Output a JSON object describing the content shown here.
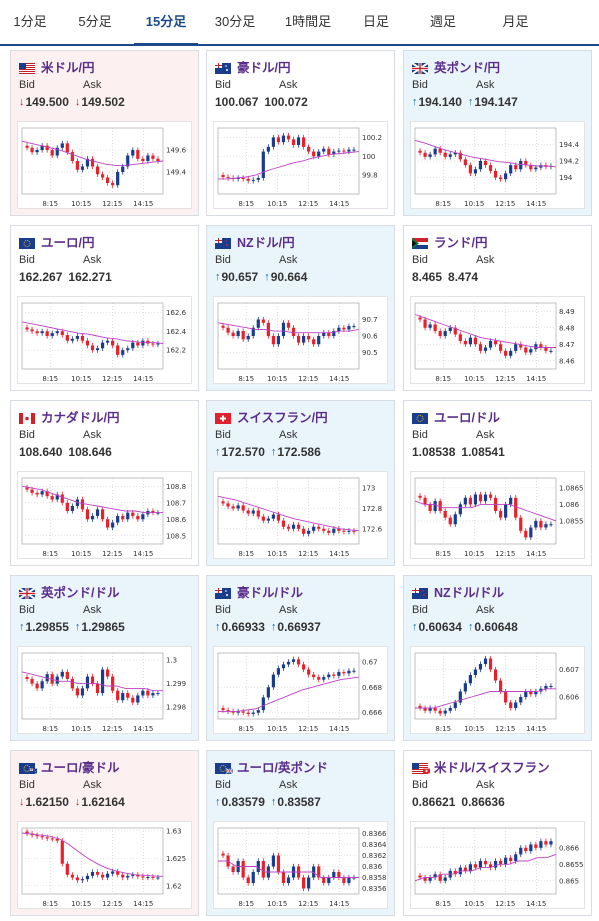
{
  "tabs": [
    "1分足",
    "5分足",
    "15分足",
    "30分足",
    "1時間足",
    "日足",
    "週足",
    "月足"
  ],
  "active_tab": 2,
  "labels": {
    "bid": "Bid",
    "ask": "Ask"
  },
  "colors": {
    "down_bg": "#fdf0f0",
    "up_bg": "#eaf4fb",
    "pair_name": "#5a2d8c",
    "bull": "#1a3c8c",
    "bear": "#e8202a",
    "ma": "#c040c8",
    "trend": "#35a5d8",
    "tab_accent": "#1a4a8a"
  },
  "x_ticks": [
    "8:15",
    "10:15",
    "12:15",
    "14:15"
  ],
  "pairs": [
    {
      "name": "米ドル/円",
      "flag": "us",
      "dir": "down",
      "bid": "149.500",
      "ask": "149.502",
      "ticks": [
        "149.6",
        "149.4"
      ],
      "chart_data": {
        "type": "candlestick",
        "ylim": [
          149.2,
          149.8
        ],
        "yticks": [
          149.6,
          149.4
        ],
        "close": [
          149.62,
          149.58,
          149.6,
          149.64,
          149.6,
          149.55,
          149.62,
          149.66,
          149.58,
          149.5,
          149.42,
          149.45,
          149.52,
          149.45,
          149.38,
          149.35,
          149.3,
          149.28,
          149.4,
          149.45,
          149.55,
          149.6,
          149.52,
          149.5,
          149.55,
          149.52,
          149.5
        ],
        "ma": [
          149.68,
          149.66,
          149.64,
          149.62,
          149.6,
          149.57,
          149.54,
          149.51,
          149.49,
          149.47,
          149.46,
          149.46,
          149.47,
          149.48,
          149.49,
          149.5
        ]
      }
    },
    {
      "name": "豪ドル/円",
      "flag": "au",
      "dir": "flat",
      "bid": "100.067",
      "ask": "100.072",
      "ticks": [
        "100.2",
        "100",
        "99.8"
      ],
      "chart_data": {
        "type": "candlestick",
        "ylim": [
          99.6,
          100.3
        ],
        "yticks": [
          100.2,
          100.0,
          99.8
        ],
        "close": [
          99.78,
          99.77,
          99.76,
          99.77,
          99.76,
          99.74,
          99.75,
          99.77,
          100.05,
          100.1,
          100.2,
          100.15,
          100.22,
          100.18,
          100.12,
          100.2,
          100.1,
          100.05,
          100.0,
          100.05,
          100.08,
          100.02,
          100.05,
          100.06,
          100.05,
          100.07,
          100.07
        ],
        "ma": [
          99.76,
          99.76,
          99.77,
          99.78,
          99.8,
          99.84,
          99.87,
          99.9,
          99.93,
          99.95,
          99.98,
          100.0,
          100.02,
          100.03,
          100.04,
          100.05
        ]
      }
    },
    {
      "name": "英ポンド/円",
      "flag": "uk",
      "dir": "up",
      "bid": "194.140",
      "ask": "194.147",
      "ticks": [
        "194.4",
        "194.2",
        "194"
      ],
      "chart_data": {
        "type": "candlestick",
        "ylim": [
          193.8,
          194.6
        ],
        "yticks": [
          194.4,
          194.2,
          194.0
        ],
        "close": [
          194.3,
          194.25,
          194.28,
          194.35,
          194.3,
          194.25,
          194.28,
          194.3,
          194.22,
          194.15,
          194.05,
          194.1,
          194.2,
          194.15,
          194.08,
          194.0,
          193.98,
          194.05,
          194.15,
          194.1,
          194.2,
          194.15,
          194.1,
          194.12,
          194.15,
          194.13,
          194.14
        ],
        "ma": [
          194.45,
          194.42,
          194.38,
          194.34,
          194.31,
          194.28,
          194.25,
          194.23,
          194.21,
          194.19,
          194.18,
          194.16,
          194.15,
          194.14,
          194.14,
          194.13
        ]
      }
    },
    {
      "name": "ユーロ/円",
      "flag": "eu",
      "dir": "flat",
      "bid": "162.267",
      "ask": "162.271",
      "ticks": [
        "162.6",
        "162.4",
        "162.2"
      ],
      "chart_data": {
        "type": "candlestick",
        "ylim": [
          162.0,
          162.7
        ],
        "yticks": [
          162.6,
          162.4,
          162.2
        ],
        "close": [
          162.42,
          162.4,
          162.38,
          162.4,
          162.35,
          162.38,
          162.4,
          162.36,
          162.3,
          162.32,
          162.35,
          162.3,
          162.25,
          162.2,
          162.22,
          162.28,
          162.3,
          162.25,
          162.15,
          162.2,
          162.22,
          162.28,
          162.25,
          162.3,
          162.27,
          162.26,
          162.27
        ],
        "ma": [
          162.5,
          162.48,
          162.46,
          162.44,
          162.42,
          162.4,
          162.38,
          162.37,
          162.35,
          162.33,
          162.32,
          162.3,
          162.29,
          162.28,
          162.28,
          162.27
        ]
      }
    },
    {
      "name": "NZドル/円",
      "flag": "nz",
      "dir": "up",
      "bid": "90.657",
      "ask": "90.664",
      "ticks": [
        "90.7",
        "90.6",
        "90.5"
      ],
      "chart_data": {
        "type": "candlestick",
        "ylim": [
          90.4,
          90.8
        ],
        "yticks": [
          90.7,
          90.6,
          90.5
        ],
        "close": [
          90.65,
          90.62,
          90.6,
          90.63,
          90.58,
          90.6,
          90.65,
          90.7,
          90.68,
          90.6,
          90.55,
          90.6,
          90.68,
          90.65,
          90.6,
          90.56,
          90.6,
          90.58,
          90.55,
          90.6,
          90.62,
          90.6,
          90.63,
          90.65,
          90.64,
          90.66,
          90.66
        ],
        "ma": [
          90.68,
          90.67,
          90.66,
          90.65,
          90.64,
          90.64,
          90.63,
          90.63,
          90.62,
          90.62,
          90.62,
          90.62,
          90.62,
          90.63,
          90.63,
          90.64
        ]
      }
    },
    {
      "name": "ランド/円",
      "flag": "za",
      "dir": "flat",
      "bid": "8.465",
      "ask": "8.474",
      "ticks": [
        "8.49",
        "8.48",
        "8.47",
        "8.46"
      ],
      "chart_data": {
        "type": "candlestick",
        "ylim": [
          8.455,
          8.495
        ],
        "yticks": [
          8.49,
          8.48,
          8.47,
          8.46
        ],
        "close": [
          8.485,
          8.48,
          8.482,
          8.478,
          8.475,
          8.478,
          8.48,
          8.476,
          8.472,
          8.47,
          8.474,
          8.47,
          8.466,
          8.468,
          8.472,
          8.47,
          8.466,
          8.463,
          8.466,
          8.47,
          8.468,
          8.465,
          8.467,
          8.47,
          8.468,
          8.466,
          8.466
        ],
        "ma": [
          8.488,
          8.486,
          8.484,
          8.482,
          8.48,
          8.478,
          8.476,
          8.474,
          8.473,
          8.472,
          8.471,
          8.47,
          8.469,
          8.468,
          8.468,
          8.468
        ]
      }
    },
    {
      "name": "カナダドル/円",
      "flag": "ca",
      "dir": "flat",
      "bid": "108.640",
      "ask": "108.646",
      "ticks": [
        "108.8",
        "108.7",
        "108.6",
        "108.5"
      ],
      "chart_data": {
        "type": "candlestick",
        "ylim": [
          108.45,
          108.85
        ],
        "yticks": [
          108.8,
          108.7,
          108.6,
          108.5
        ],
        "close": [
          108.78,
          108.76,
          108.75,
          108.77,
          108.74,
          108.72,
          108.75,
          108.7,
          108.65,
          108.68,
          108.72,
          108.66,
          108.6,
          108.62,
          108.66,
          108.6,
          108.55,
          108.58,
          108.62,
          108.6,
          108.64,
          108.62,
          108.6,
          108.63,
          108.65,
          108.64,
          108.64
        ],
        "ma": [
          108.8,
          108.79,
          108.78,
          108.76,
          108.74,
          108.72,
          108.7,
          108.69,
          108.68,
          108.67,
          108.66,
          108.65,
          108.65,
          108.64,
          108.64,
          108.64
        ]
      }
    },
    {
      "name": "スイスフラン/円",
      "flag": "ch",
      "dir": "up",
      "bid": "172.570",
      "ask": "172.586",
      "ticks": [
        "173",
        "172.8",
        "172.6"
      ],
      "chart_data": {
        "type": "candlestick",
        "ylim": [
          172.45,
          173.1
        ],
        "yticks": [
          173.0,
          172.8,
          172.6
        ],
        "close": [
          172.85,
          172.82,
          172.8,
          172.83,
          172.78,
          172.75,
          172.78,
          172.72,
          172.68,
          172.7,
          172.74,
          172.68,
          172.62,
          172.6,
          172.64,
          172.6,
          172.55,
          172.58,
          172.62,
          172.6,
          172.58,
          172.56,
          172.6,
          172.58,
          172.57,
          172.58,
          172.57
        ],
        "ma": [
          172.92,
          172.9,
          172.88,
          172.85,
          172.82,
          172.79,
          172.76,
          172.73,
          172.7,
          172.68,
          172.66,
          172.64,
          172.62,
          172.6,
          172.59,
          172.58
        ]
      }
    },
    {
      "name": "ユーロ/ドル",
      "flag": "eu",
      "dir": "flat",
      "bid": "1.08538",
      "ask": "1.08541",
      "ticks": [
        "1.0865",
        "1.086",
        "1.0855"
      ],
      "chart_data": {
        "type": "candlestick",
        "ylim": [
          1.0848,
          1.0868
        ],
        "yticks": [
          1.0865,
          1.086,
          1.0855
        ],
        "close": [
          1.0862,
          1.086,
          1.0858,
          1.0861,
          1.0858,
          1.0856,
          1.0854,
          1.0857,
          1.086,
          1.0862,
          1.086,
          1.0863,
          1.0861,
          1.0863,
          1.0862,
          1.0858,
          1.0856,
          1.086,
          1.0862,
          1.0856,
          1.0852,
          1.085,
          1.0853,
          1.0855,
          1.0853,
          1.0854,
          1.0854
        ],
        "ma": [
          1.0861,
          1.086,
          1.086,
          1.0859,
          1.0859,
          1.0859,
          1.0859,
          1.086,
          1.086,
          1.086,
          1.086,
          1.0859,
          1.0858,
          1.0857,
          1.0856,
          1.0855
        ]
      }
    },
    {
      "name": "英ポンド/ドル",
      "flag": "uk",
      "dir": "up",
      "bid": "1.29855",
      "ask": "1.29865",
      "ticks": [
        "1.3",
        "1.299",
        "1.298"
      ],
      "chart_data": {
        "type": "candlestick",
        "ylim": [
          1.2975,
          1.3003
        ],
        "yticks": [
          1.3,
          1.299,
          1.298
        ],
        "close": [
          1.2992,
          1.299,
          1.2988,
          1.2991,
          1.2994,
          1.299,
          1.2993,
          1.2995,
          1.2992,
          1.2988,
          1.2985,
          1.2988,
          1.2993,
          1.299,
          1.2986,
          1.2996,
          1.2993,
          1.2987,
          1.2983,
          1.2986,
          1.2984,
          1.2982,
          1.2985,
          1.2987,
          1.2985,
          1.2986,
          1.2986
        ],
        "ma": [
          1.2995,
          1.2994,
          1.2993,
          1.2992,
          1.2991,
          1.2991,
          1.299,
          1.299,
          1.299,
          1.2989,
          1.2989,
          1.2988,
          1.2988,
          1.2988,
          1.2987,
          1.2987
        ]
      }
    },
    {
      "name": "豪ドル/ドル",
      "flag": "au",
      "dir": "up",
      "bid": "0.66933",
      "ask": "0.66937",
      "ticks": [
        "0.67",
        "0.668",
        "0.666"
      ],
      "chart_data": {
        "type": "candlestick",
        "ylim": [
          0.6655,
          0.6707
        ],
        "yticks": [
          0.67,
          0.668,
          0.666
        ],
        "close": [
          0.6662,
          0.6661,
          0.666,
          0.6661,
          0.666,
          0.6659,
          0.666,
          0.6662,
          0.6672,
          0.668,
          0.669,
          0.6695,
          0.6698,
          0.67,
          0.6702,
          0.6698,
          0.6694,
          0.669,
          0.6688,
          0.6686,
          0.6688,
          0.669,
          0.6689,
          0.6692,
          0.6691,
          0.6693,
          0.6693
        ],
        "ma": [
          0.6661,
          0.6661,
          0.6661,
          0.6662,
          0.6663,
          0.6666,
          0.6669,
          0.6672,
          0.6675,
          0.6678,
          0.668,
          0.6682,
          0.6684,
          0.6686,
          0.6687,
          0.6688
        ]
      }
    },
    {
      "name": "NZドル/ドル",
      "flag": "nz",
      "dir": "up",
      "bid": "0.60634",
      "ask": "0.60648",
      "ticks": [
        "0.607",
        "0.606"
      ],
      "chart_data": {
        "type": "candlestick",
        "ylim": [
          0.6052,
          0.6076
        ],
        "yticks": [
          0.607,
          0.606
        ],
        "close": [
          0.6056,
          0.6055,
          0.6056,
          0.6055,
          0.6054,
          0.6055,
          0.6056,
          0.6058,
          0.6062,
          0.6065,
          0.6068,
          0.607,
          0.6072,
          0.6074,
          0.607,
          0.6066,
          0.6062,
          0.6058,
          0.6056,
          0.6058,
          0.606,
          0.6062,
          0.6061,
          0.6062,
          0.6063,
          0.6064,
          0.6064
        ],
        "ma": [
          0.6056,
          0.6056,
          0.6056,
          0.6057,
          0.6058,
          0.6059,
          0.606,
          0.6061,
          0.6062,
          0.6062,
          0.6062,
          0.6062,
          0.6062,
          0.6062,
          0.6063,
          0.6063
        ]
      }
    },
    {
      "name": "ユーロ/豪ドル",
      "flag": "eu",
      "flag2": "au",
      "dir": "down",
      "bid": "1.62150",
      "ask": "1.62164",
      "ticks": [
        "1.63",
        "1.625",
        "1.62"
      ],
      "chart_data": {
        "type": "candlestick",
        "ylim": [
          1.6185,
          1.6305
        ],
        "yticks": [
          1.63,
          1.625,
          1.62
        ],
        "close": [
          1.6295,
          1.6292,
          1.629,
          1.6288,
          1.6286,
          1.6285,
          1.6282,
          1.624,
          1.622,
          1.6215,
          1.621,
          1.6212,
          1.6218,
          1.6225,
          1.622,
          1.6215,
          1.6222,
          1.6226,
          1.622,
          1.6215,
          1.6218,
          1.622,
          1.6217,
          1.6215,
          1.6216,
          1.6215,
          1.6215
        ],
        "ma": [
          1.6296,
          1.6294,
          1.6292,
          1.629,
          1.6285,
          1.6275,
          1.6262,
          1.625,
          1.624,
          1.6232,
          1.6227,
          1.6223,
          1.622,
          1.6219,
          1.6218,
          1.6217
        ]
      }
    },
    {
      "name": "ユーロ/英ポンド",
      "flag": "eu",
      "flag2": "uk",
      "dir": "up",
      "bid": "0.83579",
      "ask": "0.83587",
      "ticks": [
        "0.8366",
        "0.8364",
        "0.8362",
        "0.836",
        "0.8358",
        "0.8356"
      ],
      "chart_data": {
        "type": "candlestick",
        "ylim": [
          0.8355,
          0.8367
        ],
        "yticks": [
          0.8366,
          0.8364,
          0.8362,
          0.836,
          0.8358,
          0.8356
        ],
        "close": [
          0.8362,
          0.836,
          0.8359,
          0.8361,
          0.8358,
          0.8357,
          0.8359,
          0.8361,
          0.8358,
          0.836,
          0.8362,
          0.8359,
          0.8357,
          0.8358,
          0.836,
          0.8358,
          0.8356,
          0.8358,
          0.836,
          0.8358,
          0.8357,
          0.8358,
          0.8359,
          0.8358,
          0.8357,
          0.8358,
          0.8358
        ],
        "ma": [
          0.8361,
          0.8361,
          0.836,
          0.836,
          0.836,
          0.8359,
          0.8359,
          0.8359,
          0.8359,
          0.8359,
          0.8359,
          0.8358,
          0.8358,
          0.8358,
          0.8358,
          0.8358
        ]
      }
    },
    {
      "name": "米ドル/スイスフラン",
      "flag": "us",
      "flag2": "ch",
      "dir": "flat",
      "bid": "0.86621",
      "ask": "0.86636",
      "ticks": [
        "0.866",
        "0.8655",
        "0.865"
      ],
      "chart_data": {
        "type": "candlestick",
        "ylim": [
          0.8646,
          0.8666
        ],
        "yticks": [
          0.866,
          0.8655,
          0.865
        ],
        "close": [
          0.8651,
          0.865,
          0.8651,
          0.8652,
          0.865,
          0.8651,
          0.8653,
          0.8652,
          0.8654,
          0.8653,
          0.8655,
          0.8654,
          0.8656,
          0.8655,
          0.8654,
          0.8656,
          0.8655,
          0.8657,
          0.8656,
          0.8658,
          0.866,
          0.8659,
          0.8661,
          0.866,
          0.8662,
          0.8661,
          0.8662
        ],
        "ma": [
          0.865,
          0.8651,
          0.8651,
          0.8652,
          0.8652,
          0.8653,
          0.8653,
          0.8654,
          0.8654,
          0.8655,
          0.8655,
          0.8656,
          0.8656,
          0.8657,
          0.8657,
          0.8658
        ]
      }
    }
  ]
}
